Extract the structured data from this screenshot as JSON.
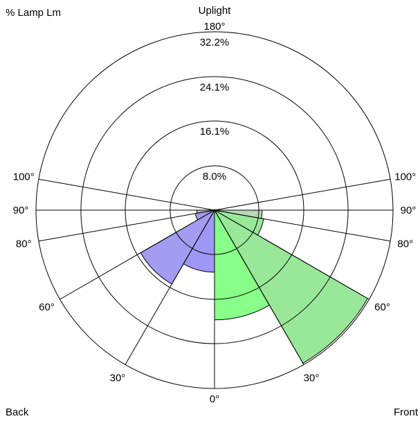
{
  "chart_data": {
    "type": "polar",
    "title": "Uplight",
    "top_angle_label": "180°",
    "units_label": "% Lamp Lm",
    "left_label": "Back",
    "right_label": "Front",
    "ring_values": [
      8.0,
      16.1,
      24.1,
      32.2
    ],
    "ring_labels": [
      "8.0%",
      "16.1%",
      "24.1%",
      "32.2%"
    ],
    "max_value": 32.2,
    "angle_ticks": [
      {
        "angle": 0,
        "label": "0°"
      },
      {
        "angle": 30,
        "label": "30°"
      },
      {
        "angle": 60,
        "label": "60°"
      },
      {
        "angle": 80,
        "label": "80°"
      },
      {
        "angle": 90,
        "label": "90°"
      },
      {
        "angle": 100,
        "label": "100°"
      }
    ],
    "series": [
      {
        "side": "front",
        "zones": [
          {
            "from": 0,
            "to": 30,
            "value": 19.8,
            "color": "#88ff88"
          },
          {
            "from": 30,
            "to": 60,
            "value": 31.9,
            "color": "#99e899"
          },
          {
            "from": 60,
            "to": 80,
            "value": 9.0,
            "color": "#99e899"
          },
          {
            "from": 80,
            "to": 90,
            "value": 8.6,
            "color": "#b8d8b8"
          }
        ]
      },
      {
        "side": "back",
        "zones": [
          {
            "from": 0,
            "to": 30,
            "value": 11.2,
            "color": "#9f97f5"
          },
          {
            "from": 30,
            "to": 60,
            "value": 15.4,
            "color": "#a49cf0"
          },
          {
            "from": 60,
            "to": 80,
            "value": 3.5,
            "color": "#a49cf0"
          },
          {
            "from": 80,
            "to": 90,
            "value": 3.2,
            "color": "#bcbcbc"
          }
        ]
      }
    ],
    "colors": {
      "front_primary": "#88ff88",
      "front_secondary": "#99e899",
      "back_primary": "#a49cf0",
      "uplight_zone": "#bcbcbc"
    }
  }
}
